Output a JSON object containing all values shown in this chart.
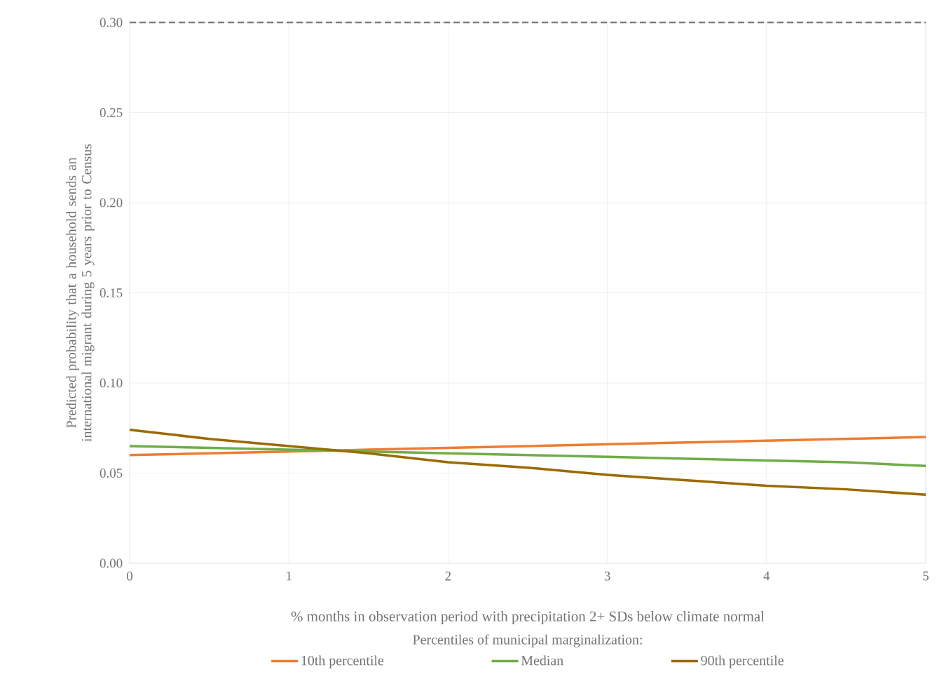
{
  "chart_data": {
    "type": "line",
    "xlabel": "% months in observation period with precipitation 2+ SDs below climate normal",
    "ylabel": "Predicted probability that a household sends an international migrant during 5 years prior to Census",
    "legend_title": "Percentiles of municipal marginalization:",
    "x": [
      0,
      0.5,
      1,
      1.5,
      2,
      2.5,
      3,
      3.5,
      4,
      4.5,
      5
    ],
    "series": [
      {
        "name": "10th percentile",
        "color": "#ed7d31",
        "values": [
          0.06,
          0.061,
          0.062,
          0.063,
          0.064,
          0.065,
          0.066,
          0.067,
          0.068,
          0.069,
          0.07
        ]
      },
      {
        "name": "Median",
        "color": "#70ad47",
        "values": [
          0.065,
          0.064,
          0.063,
          0.062,
          0.061,
          0.06,
          0.059,
          0.058,
          0.057,
          0.056,
          0.054
        ]
      },
      {
        "name": "90th percentile",
        "color": "#9c6a00",
        "values": [
          0.074,
          0.069,
          0.065,
          0.061,
          0.056,
          0.053,
          0.049,
          0.046,
          0.043,
          0.041,
          0.038
        ]
      }
    ],
    "xlim": [
      0,
      5
    ],
    "ylim": [
      0,
      0.3
    ],
    "xticks": [
      0,
      1,
      2,
      3,
      4,
      5
    ],
    "yticks": [
      {
        "value": 0,
        "label": "0.00"
      },
      {
        "value": 0.05,
        "label": "0.05"
      },
      {
        "value": 0.1,
        "label": "0.10"
      },
      {
        "value": 0.15,
        "label": "0.15"
      },
      {
        "value": 0.2,
        "label": "0.20"
      },
      {
        "value": 0.25,
        "label": "0.25"
      },
      {
        "value": 0.3,
        "label": "0.30"
      }
    ],
    "ref_lines": [
      {
        "axis": "y",
        "value": 0.3,
        "color": "#7f7f7f",
        "line_style": "dashed"
      }
    ],
    "grid": true,
    "legend": "bottom",
    "line_style": "solid",
    "marker": "none"
  }
}
